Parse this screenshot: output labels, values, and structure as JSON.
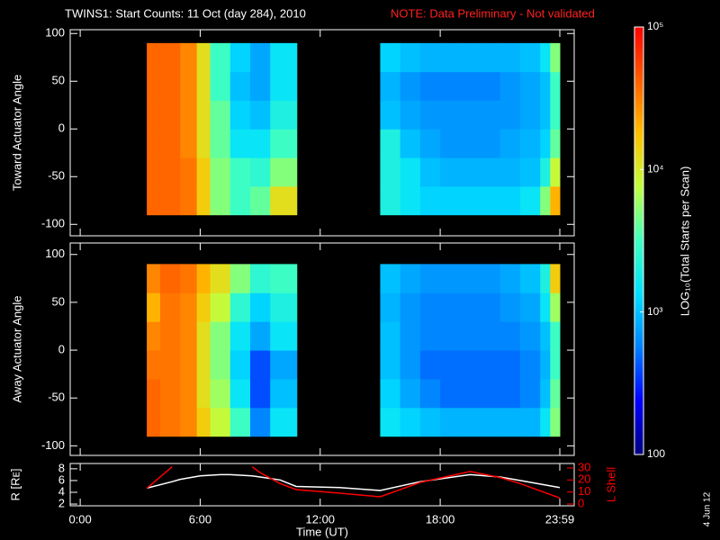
{
  "title": "TWINS1: Start Counts: 11 Oct (day 284), 2010",
  "note": "NOTE: Data Preliminary - Not validated",
  "date_stamp": "4 Jun 12",
  "colorbar": {
    "label": "LOG₁₀(Total Starts per Scan)",
    "log": true,
    "zlim": [
      100,
      100000
    ],
    "zticks": [
      {
        "value": 100000,
        "label": "10⁵"
      },
      {
        "value": 10000,
        "label": "10⁴"
      },
      {
        "value": 1000,
        "label": "10³"
      },
      100
    ],
    "colormap": [
      "#000080",
      "#0000ff",
      "#0080ff",
      "#00e0ff",
      "#40ffc0",
      "#c0ff40",
      "#ffc000",
      "#ff6000",
      "#ff0000"
    ]
  },
  "chart_data": [
    {
      "type": "heatmap",
      "ylabel": "Toward Actuator Angle",
      "xlim": [
        -0.5,
        24.7
      ],
      "xticks": [
        0,
        6,
        12,
        18,
        23.98
      ],
      "ylim": [
        -112,
        104
      ],
      "yticks": [
        -100,
        -50,
        0,
        50,
        100
      ],
      "x_bins": [
        3.33,
        4,
        5,
        5.83,
        6.5,
        7.5,
        8.5,
        9.5,
        10.83,
        15,
        16,
        17,
        18,
        19,
        20,
        21,
        22,
        23,
        23.5,
        23.98
      ],
      "y_bins": [
        -90,
        -60,
        -30,
        0,
        30,
        60,
        90
      ],
      "z": [
        [
          40000,
          40000,
          35000,
          15000,
          5000,
          3000,
          4000,
          12000,
          null,
          2000,
          1500,
          1200,
          1200,
          1200,
          1200,
          1200,
          1500,
          5000,
          20000
        ],
        [
          40000,
          40000,
          35000,
          15000,
          5000,
          3000,
          2500,
          5000,
          null,
          2000,
          1500,
          1000,
          900,
          900,
          900,
          900,
          1000,
          2000,
          8000
        ],
        [
          40000,
          40000,
          30000,
          12000,
          4000,
          1500,
          1500,
          3000,
          null,
          2000,
          1000,
          800,
          700,
          700,
          700,
          800,
          900,
          1200,
          4000
        ],
        [
          40000,
          40000,
          30000,
          12000,
          4000,
          1200,
          1000,
          2000,
          null,
          1000,
          800,
          700,
          700,
          700,
          700,
          700,
          800,
          1000,
          3000
        ],
        [
          40000,
          40000,
          30000,
          12000,
          3000,
          1000,
          800,
          1500,
          null,
          900,
          700,
          600,
          600,
          600,
          600,
          700,
          800,
          1000,
          3000
        ],
        [
          40000,
          40000,
          30000,
          12000,
          3000,
          1200,
          800,
          1500,
          null,
          1200,
          1000,
          900,
          900,
          900,
          900,
          900,
          1000,
          1500,
          5000
        ]
      ]
    },
    {
      "type": "heatmap",
      "ylabel": "Away Actuator Angle",
      "xlim": [
        -0.5,
        24.7
      ],
      "xticks": [
        0,
        6,
        12,
        18,
        23.98
      ],
      "ylim": [
        -110,
        112
      ],
      "yticks": [
        -100,
        -50,
        0,
        50,
        100
      ],
      "x_bins": [
        3.33,
        4,
        5,
        5.83,
        6.5,
        7.5,
        8.5,
        9.5,
        10.83,
        15,
        16,
        17,
        18,
        19,
        20,
        21,
        22,
        23,
        23.5,
        23.98
      ],
      "y_bins": [
        -90,
        -60,
        -30,
        0,
        30,
        60,
        90
      ],
      "z": [
        [
          40000,
          35000,
          30000,
          15000,
          8000,
          3000,
          600,
          1500,
          null,
          1500,
          1200,
          1000,
          900,
          900,
          900,
          900,
          900,
          1500,
          5000
        ],
        [
          40000,
          35000,
          30000,
          12000,
          6000,
          1500,
          400,
          1000,
          null,
          1200,
          800,
          600,
          500,
          500,
          500,
          500,
          600,
          1000,
          4000
        ],
        [
          35000,
          35000,
          30000,
          12000,
          5000,
          1200,
          400,
          800,
          null,
          1000,
          700,
          500,
          500,
          500,
          500,
          500,
          600,
          900,
          3000
        ],
        [
          30000,
          35000,
          30000,
          12000,
          5000,
          1500,
          800,
          1500,
          null,
          1000,
          700,
          600,
          600,
          600,
          600,
          600,
          700,
          1000,
          3000
        ],
        [
          20000,
          35000,
          30000,
          15000,
          8000,
          2500,
          1200,
          2000,
          null,
          900,
          700,
          600,
          600,
          600,
          600,
          700,
          800,
          1500,
          6000
        ],
        [
          30000,
          40000,
          35000,
          20000,
          12000,
          5000,
          2500,
          3000,
          null,
          1000,
          800,
          700,
          700,
          700,
          700,
          800,
          1000,
          2000,
          15000
        ]
      ]
    },
    {
      "type": "line",
      "xlabel": "Time (UT)",
      "ylabel": "R [Rᴇ]",
      "y2label": "L Shell",
      "xlim": [
        -0.5,
        24.7
      ],
      "xticks": [
        {
          "value": 0,
          "label": "0:00"
        },
        {
          "value": 6,
          "label": "6:00"
        },
        {
          "value": 12,
          "label": "12:00"
        },
        {
          "value": 18,
          "label": "18:00"
        },
        {
          "value": 23.98,
          "label": "23:59"
        }
      ],
      "ylim": [
        1.7,
        8.9
      ],
      "yticks": [
        2,
        4,
        6,
        8
      ],
      "y2lim": [
        -1.5,
        33.7
      ],
      "y2ticks": [
        0,
        10,
        20,
        30
      ],
      "y2color": "#ff0000",
      "x": [
        3.33,
        4.6,
        5,
        6,
        7,
        7.5,
        8.6,
        9,
        10,
        10.8,
        13,
        15,
        17,
        19.5,
        21,
        22,
        23.98
      ],
      "series": [
        {
          "color": "#ffffff",
          "values": [
            4.7,
            5.8,
            6.2,
            6.8,
            7.0,
            7.0,
            6.8,
            6.6,
            6.1,
            5.0,
            4.8,
            4.3,
            5.8,
            7.0,
            6.6,
            6.0,
            4.8
          ]
        },
        {
          "color": "#ff0000",
          "axis": "y2",
          "values": [
            13,
            31,
            null,
            null,
            null,
            null,
            31,
            26,
            17,
            12,
            9,
            6,
            18,
            27,
            22,
            17,
            5
          ]
        }
      ]
    }
  ]
}
